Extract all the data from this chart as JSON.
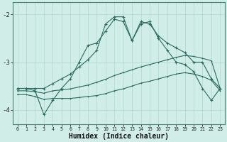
{
  "xlabel": "Humidex (Indice chaleur)",
  "bg_color": "#d0ede8",
  "grid_color": "#b0d8d0",
  "line_color": "#2a6b60",
  "x_values": [
    0,
    1,
    2,
    3,
    4,
    5,
    6,
    7,
    8,
    9,
    10,
    11,
    12,
    13,
    14,
    15,
    16,
    17,
    18,
    19,
    20,
    21,
    22,
    23
  ],
  "line1_y": [
    -3.55,
    -3.55,
    -3.55,
    -3.55,
    -3.45,
    -3.35,
    -3.25,
    -3.1,
    -2.95,
    -2.75,
    -2.2,
    -2.05,
    -2.05,
    -2.55,
    -2.15,
    -2.2,
    -2.45,
    -2.6,
    -2.7,
    -2.8,
    -3.0,
    -3.0,
    -3.35,
    -3.55
  ],
  "line2_y": [
    -3.55,
    -3.55,
    -3.6,
    -4.1,
    -3.8,
    -3.55,
    -3.35,
    -3.0,
    -2.65,
    -2.6,
    -2.35,
    -2.1,
    -2.15,
    -2.55,
    -2.2,
    -2.15,
    -2.5,
    -2.75,
    -3.0,
    -3.05,
    -3.2,
    -3.55,
    -3.8,
    -3.55
  ],
  "line3_y": [
    -3.6,
    -3.6,
    -3.62,
    -3.65,
    -3.6,
    -3.58,
    -3.56,
    -3.52,
    -3.48,
    -3.42,
    -3.36,
    -3.28,
    -3.22,
    -3.16,
    -3.1,
    -3.05,
    -3.0,
    -2.95,
    -2.9,
    -2.86,
    -2.88,
    -2.92,
    -2.97,
    -3.55
  ],
  "line4_y": [
    -3.68,
    -3.68,
    -3.72,
    -3.78,
    -3.76,
    -3.76,
    -3.76,
    -3.74,
    -3.72,
    -3.7,
    -3.66,
    -3.6,
    -3.56,
    -3.5,
    -3.44,
    -3.4,
    -3.35,
    -3.3,
    -3.25,
    -3.22,
    -3.25,
    -3.3,
    -3.38,
    -3.6
  ],
  "ylim": [
    -4.3,
    -1.75
  ],
  "xlim": [
    -0.5,
    23.5
  ],
  "yticks": [
    -4,
    -3,
    -2
  ],
  "ytick_labels": [
    "-4",
    "-3",
    "-2"
  ]
}
